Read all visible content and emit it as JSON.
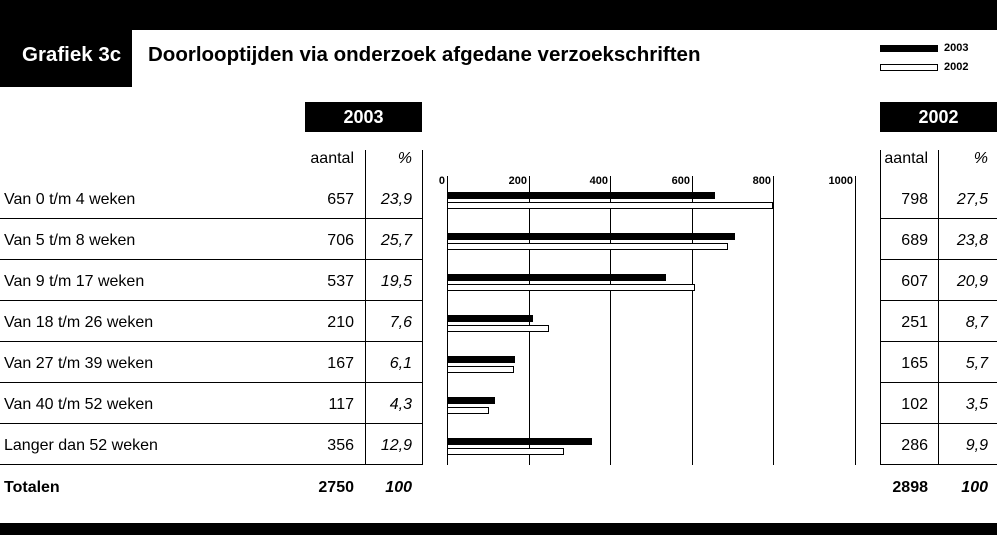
{
  "header": {
    "badge": "Grafiek 3c",
    "title": "Doorlooptijden via onderzoek afgedane verzoekschriften"
  },
  "table": {
    "col_count": "aantal",
    "col_pct": "%",
    "totals_label": "Totalen"
  },
  "colors": {
    "background": "#ffffff",
    "ink": "#000000"
  },
  "chart_data": {
    "type": "bar",
    "orientation": "horizontal",
    "categories": [
      "Van 0 t/m 4 weken",
      "Van 5 t/m 8 weken",
      "Van 9 t/m 17 weken",
      "Van 18 t/m 26 weken",
      "Van 27 t/m 39 weken",
      "Van 40 t/m 52 weken",
      "Langer dan 52 weken"
    ],
    "series": [
      {
        "name": "2003",
        "color": "#000000",
        "values": [
          657,
          706,
          537,
          210,
          167,
          117,
          356
        ],
        "percentages": [
          "23,9",
          "25,7",
          "19,5",
          "7,6",
          "6,1",
          "4,3",
          "12,9"
        ],
        "total": 2750,
        "total_pct": "100"
      },
      {
        "name": "2002",
        "color": "#ffffff",
        "values": [
          798,
          689,
          607,
          251,
          165,
          102,
          286
        ],
        "percentages": [
          "27,5",
          "23,8",
          "20,9",
          "8,7",
          "5,7",
          "3,5",
          "9,9"
        ],
        "total": 2898,
        "total_pct": "100"
      }
    ],
    "xlim": [
      0,
      1000
    ],
    "ticks": [
      0,
      200,
      400,
      600,
      800,
      1000
    ],
    "grid": true,
    "legend": "top-right"
  }
}
